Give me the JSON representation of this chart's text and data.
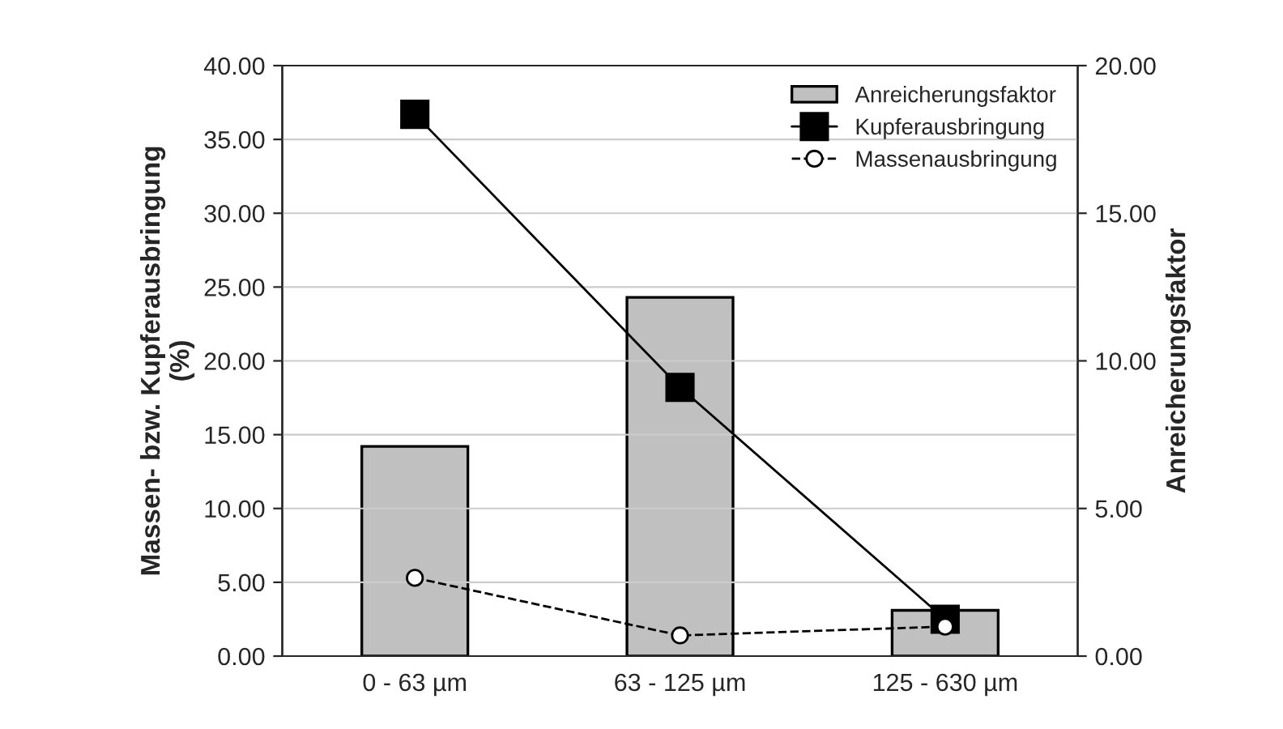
{
  "chart_data": {
    "type": "bar",
    "categories": [
      "0 - 63 µm",
      "63 - 125 µm",
      "125 - 630 µm"
    ],
    "ylabel": "Massen- bzw. Kupferausbringung\n(%)",
    "y2label": "Anreicherungsfaktor",
    "ylim": [
      0,
      40
    ],
    "yticks": [
      {
        "value": 0,
        "label": "0.00"
      },
      {
        "value": 5,
        "label": "5.00"
      },
      {
        "value": 10,
        "label": "10.00"
      },
      {
        "value": 15,
        "label": "15.00"
      },
      {
        "value": 20,
        "label": "20.00"
      },
      {
        "value": 25,
        "label": "25.00"
      },
      {
        "value": 30,
        "label": "30.00"
      },
      {
        "value": 35,
        "label": "35.00"
      },
      {
        "value": 40,
        "label": "40.00"
      }
    ],
    "y2lim": [
      0,
      20
    ],
    "y2ticks": [
      {
        "value": 0,
        "label": "0.00"
      },
      {
        "value": 5,
        "label": "5.00"
      },
      {
        "value": 10,
        "label": "10.00"
      },
      {
        "value": 15,
        "label": "15.00"
      },
      {
        "value": 20,
        "label": "20.00"
      }
    ],
    "grid": "y",
    "legend": "top right",
    "series": [
      {
        "name": "Anreicherungsfaktor",
        "axis": "y2",
        "color": "#c0c0c0",
        "values": [
          7.1,
          12.15,
          1.55
        ]
      },
      {
        "name": "Kupferausbringung",
        "type": "line",
        "color": "#000000",
        "marker": "square",
        "line_style": "solid",
        "values": [
          36.7,
          18.2,
          2.5
        ]
      },
      {
        "name": "Massenausbringung",
        "type": "line",
        "color": "#000000",
        "marker": "circle",
        "line_style": "dashed",
        "values": [
          5.3,
          1.4,
          2.0
        ]
      }
    ]
  }
}
